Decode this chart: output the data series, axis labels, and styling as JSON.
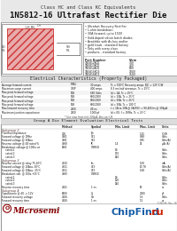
{
  "title_top": "Class HC and Class KC Equivalents",
  "title_main": "1N5812-16 Ultrafast Rectifier Die",
  "bg_color": "#ffffff",
  "border_color": "#999999",
  "microsemi_color": "#8b0000",
  "chipfind_blue": "#1a5fa8",
  "chipfind_red": "#cc2200",
  "section1_title": "Electrical Characteristics (Property Packaged)",
  "section2_title": "Group A Die Element Evaluation Electrical Tests",
  "features": [
    "Ultrafast Recovery Rectifier",
    "1-ohm breakdown",
    "30A forward, up to 150V",
    "Gold-doped silicon batch diodes",
    "Available with Au key and/or",
    "gold leads - standard factory",
    "Only with every class",
    "products - standard factory"
  ],
  "part_numbers": [
    [
      "1N5812KCE",
      "30V"
    ],
    [
      "1N5813KCE",
      "40V"
    ],
    [
      "1N5814KCE",
      "60V"
    ],
    [
      "1N5815KCE",
      "100V"
    ],
    [
      "1N5816KCE",
      "150V"
    ]
  ],
  "elec_rows": [
    [
      "Average forward current",
      "F(AV)",
      "30 amps",
      "Tc = 100°C Recovery amps, BJC = 125°C/W"
    ],
    [
      "Maximum surge current",
      "750P",
      "400 amps",
      "8.3 ms half sinewave, Tc = 25°C"
    ],
    [
      "Max peak forward voltage",
      "F1B",
      "680 Volts",
      "Id = 1A, Tc = 25°C"
    ],
    [
      "Max peak forward voltage",
      "F1B",
      "680/200V",
      "Id = 10A, Tc = 25°C"
    ],
    [
      "Max peak forward voltage",
      "F1B",
      "680/200V",
      "Id = 30A, Tc = 25°C"
    ],
    [
      "Max peak forward voltage",
      "F1B",
      "680/200V",
      "Id = 30A, Tc = 100°C"
    ],
    [
      "Max forward recovery time",
      "2500",
      "49 ns",
      "t = 1A to 10A @ I(A(50)) = 90-405/ns @ 304μA"
    ],
    [
      "Maximum junction capacitance",
      "2500",
      "1000 pf",
      "Id = 0V, f = 1MHz, Tc = 25°C"
    ]
  ],
  "footer_note": "* Use max from min 200μA, Any per US",
  "sg2_rows": [
    [
      "Thermal impedance",
      "200",
      "θJc",
      "",
      "1.25",
      "°C/W"
    ],
    [
      "Forward voltage @ 1Mhz",
      "4001",
      "VF1",
      "",
      "0.88",
      "Volts"
    ],
    [
      "Forward voltage @ 30Aca",
      "4001",
      "VF2",
      "",
      "0.85",
      "Volts(A)"
    ],
    [
      "Reverse voltage @ 48 rated %",
      "4008",
      "IR",
      "1.4",
      "15",
      "μA (A)"
    ],
    [
      "Breakdown voltage @ 100kv at",
      "0001",
      "V(BR)O",
      "",
      "",
      ""
    ],
    [
      "     rated-1",
      "",
      "",
      "80",
      "",
      "Volts"
    ],
    [
      "     rated-2",
      "",
      "",
      "110",
      "",
      "Volts"
    ],
    [
      "     rated-3",
      "",
      "",
      "140",
      "",
      "Volts"
    ]
  ],
  "sg3_rows": [
    [
      "Reverse current @ relay 75,10°C",
      "4010",
      "Im",
      "",
      "1.00",
      "mA"
    ],
    [
      "Forward voltage @ 10Aca, 30°C",
      "4011",
      "VF3",
      "",
      "10.78",
      "Volts(A)"
    ],
    [
      "Forward voltage @ 10Aca, -55°C",
      "4011",
      "VF3",
      "",
      "1.08",
      "Volts(A)"
    ],
    [
      "Breakdown volt. @ 100s,+55°C",
      "4009",
      "V(BR)0",
      "",
      "",
      ""
    ],
    [
      "     rated-1",
      "",
      "",
      "80",
      "",
      "Volts"
    ],
    [
      "     rated-2",
      "",
      "",
      "120",
      "",
      "Volts"
    ],
    [
      "     rated-3",
      "",
      "",
      "140",
      "",
      "Volts"
    ]
  ],
  "sg3_extra": [
    "Reverse recovery time",
    "4021",
    "1 ns",
    "",
    "50",
    "ns"
  ],
  "sg4_rows": [
    [
      "Capacitance @ 4V -> 12V",
      "0000",
      "Cj",
      "",
      "2000",
      "pF"
    ],
    [
      "Forward recovery voltage",
      "4026",
      "Vfr",
      "",
      "5.3",
      "Volts"
    ],
    [
      "Forward recovery time",
      "4026",
      "1 ns",
      "",
      "1.5",
      "ns"
    ]
  ]
}
